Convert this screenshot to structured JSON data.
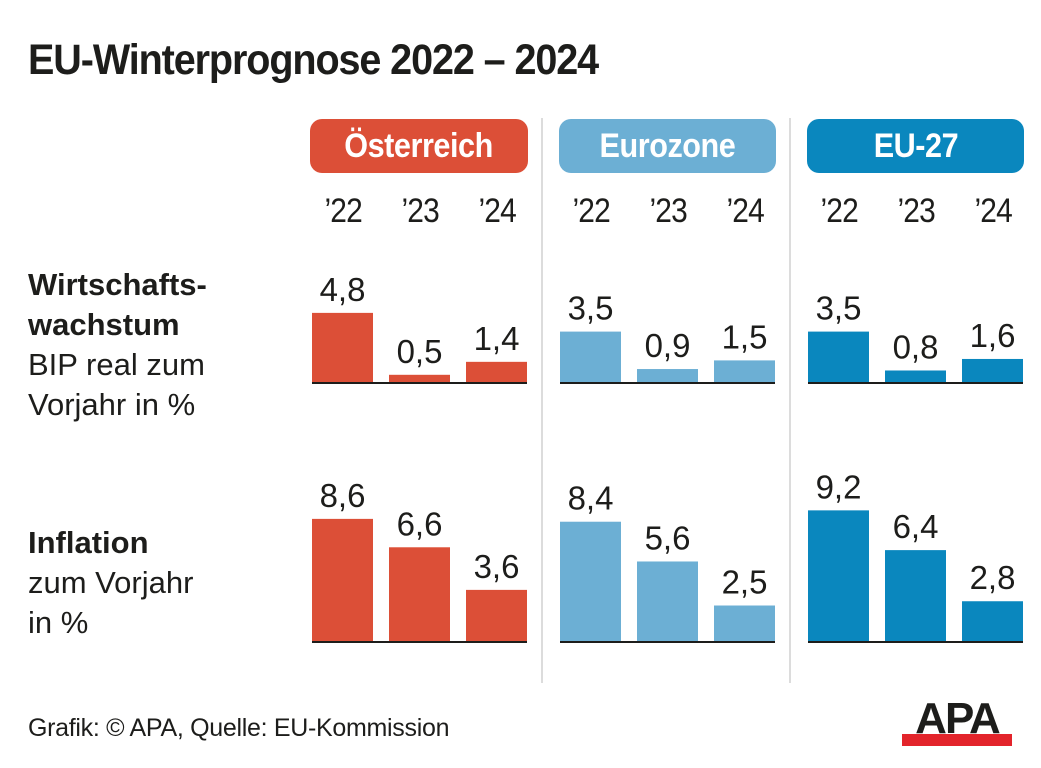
{
  "title": "EU-Winterprognose 2022 – 2024",
  "footer": "Grafik: © APA, Quelle: EU-Kommission",
  "logo": "APA",
  "colors": {
    "oesterreich": "#dc4f37",
    "eurozone": "#6cafd4",
    "eu27": "#0a87be",
    "text": "#1d1d1b",
    "logo_bar": "#e3242b"
  },
  "row_labels": {
    "growth": {
      "bold_lines": [
        "Wirtschafts-",
        "wachstum"
      ],
      "lines": [
        "BIP real zum",
        "Vorjahr in %"
      ]
    },
    "inflation": {
      "bold_lines": [
        "Inflation"
      ],
      "lines": [
        "zum Vorjahr",
        "in %"
      ]
    }
  },
  "chart_data": {
    "type": "bar",
    "title": "EU-Winterprognose 2022 – 2024",
    "categories": [
      "’22",
      "’23",
      "’24"
    ],
    "groups": [
      "Österreich",
      "Eurozone",
      "EU-27"
    ],
    "panels": [
      {
        "name": "Wirtschaftswachstum",
        "subtitle": "BIP real zum Vorjahr in %",
        "series": [
          {
            "name": "Österreich",
            "values": [
              4.8,
              0.5,
              1.4
            ],
            "labels": [
              "4,8",
              "0,5",
              "1,4"
            ]
          },
          {
            "name": "Eurozone",
            "values": [
              3.5,
              0.9,
              1.5
            ],
            "labels": [
              "3,5",
              "0,9",
              "1,5"
            ]
          },
          {
            "name": "EU-27",
            "values": [
              3.5,
              0.8,
              1.6
            ],
            "labels": [
              "3,5",
              "0,8",
              "1,6"
            ]
          }
        ]
      },
      {
        "name": "Inflation",
        "subtitle": "zum Vorjahr in %",
        "series": [
          {
            "name": "Österreich",
            "values": [
              8.6,
              6.6,
              3.6
            ],
            "labels": [
              "8,6",
              "6,6",
              "3,6"
            ]
          },
          {
            "name": "Eurozone",
            "values": [
              8.4,
              5.6,
              2.5
            ],
            "labels": [
              "8,4",
              "5,6",
              "2,5"
            ]
          },
          {
            "name": "EU-27",
            "values": [
              9.2,
              6.4,
              2.8
            ],
            "labels": [
              "9,2",
              "6,4",
              "2,8"
            ]
          }
        ]
      }
    ],
    "xlabel": "",
    "ylabel": "",
    "grid": false,
    "legend": "top"
  }
}
